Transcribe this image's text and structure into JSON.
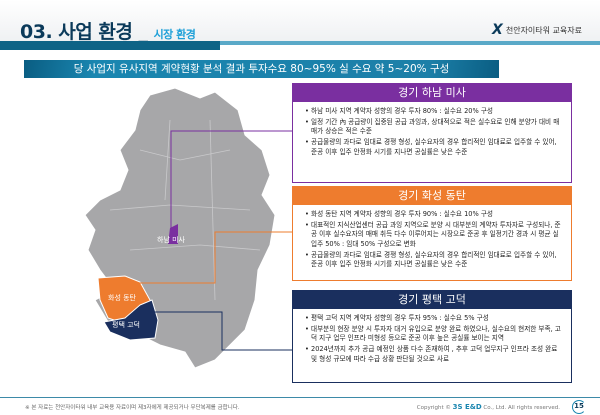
{
  "header": {
    "section_num": "03.",
    "title": "사업 환경 _ ",
    "subtitle": "시장 환경",
    "logo_text": "천안자이타워 교육자료"
  },
  "banner": "당 사업지 유사지역 계약현황 분석 결과 투자수요 80~95% 실 수요 약 5~20% 구성",
  "map": {
    "labels": [
      "하남 미사",
      "화성 동탄",
      "평택 고덕"
    ]
  },
  "boxes": [
    {
      "title": "경기 하남 미사",
      "color": "#7a2fa0",
      "items": [
        "하남 미사 지역 계약자 성향의 경우 투자 80% : 실수요 20% 구성",
        "일정 기간 內 공급량이 집중된 공급 과잉과, 상대적으로 적은 실수요로 인해 분양가 대비 매매가 상승은 적은 수준",
        "공급물량의 과다로 임대료 경쟁 형성, 실수요자의 경우 합리적인 임대료로 입주할 수 있어, 준공 이후 입주 안정화 시기를 지나면 공실률은 낮은 수준"
      ]
    },
    {
      "title": "경기 화성 동탄",
      "color": "#ee7c2e",
      "items": [
        "화성 동탄 지역 계약자 성향의 경우 투자 90% : 실수요 10% 구성",
        "대표적인 지식산업센터 공급 과잉 지역으로 분양 시 대부분의 계약자 투자자로 구성되나, 준공 이후 실수요자의 매매 취득 다수 이루어지는 시장으로 준공 후 일정기간 경과 시 평균 실입주 50% : 임대 50% 구성으로 변화",
        "공급물량의 과다로 임대료 경쟁 형성, 실수요자의 경우 합리적인 임대료로 입주할 수 있어, 준공 이후 입주 안정화 시기를 지나면 공실률은 낮은 수준"
      ]
    },
    {
      "title": "경기 평택 고덕",
      "color": "#1a2f5e",
      "items": [
        "평택 고덕 지역 계약자 성향의 경우 투자 95% : 실수요 5% 구성",
        "대부분의 현장 분양 시 투자자 대거 유입으로 분양 완료 하였으나, 실수요의 현저한 부족, 고덕 지구 업무 인프라 미형성 등으로 준공 이후 높은 공실률 보이는 지역",
        "2024년까지 추가 공급 예정인 상품 다수 존재하여 , 추후 고덕 업무지구 인프라 조성 완료 및 형성 규모에 따라 수급 상황 판단될 것으로 사료"
      ]
    }
  ],
  "footer": {
    "notice": "※ 본 자료는 천안자이타워 내부 교육용 자료이며 제3자에게 제공되거나 무단복제를 금합니다.",
    "copyright_pre": "Copyright © ",
    "brand": "3S E&D",
    "copyright_post": " Co., Ltd. All rights reserved.",
    "page": "15"
  }
}
